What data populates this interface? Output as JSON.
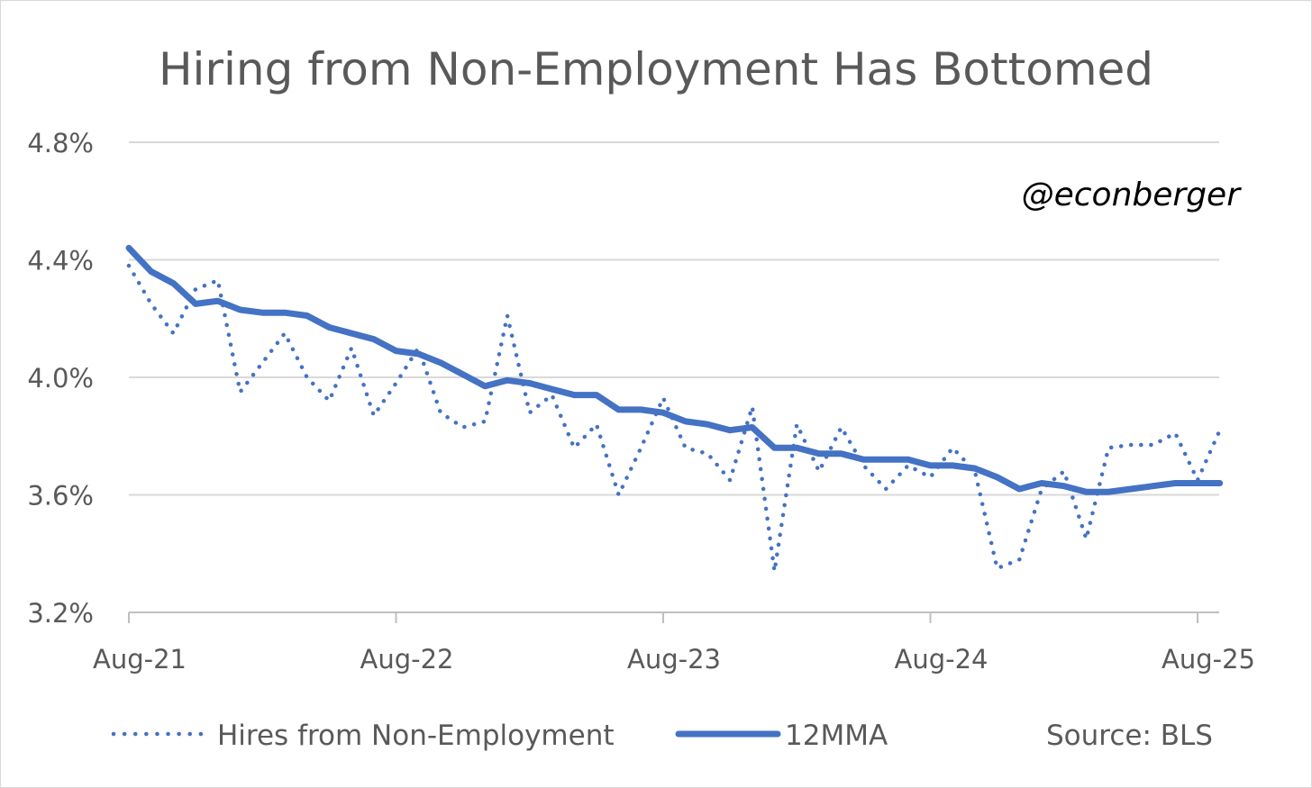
{
  "chart_data": {
    "type": "line",
    "title": "Hiring from Non-Employment Has Bottomed",
    "annotation": "@econberger",
    "source": "Source: BLS",
    "xlabel": "",
    "ylabel": "",
    "ylim": [
      3.2,
      4.8
    ],
    "yticks": [
      "3.2%",
      "3.6%",
      "4.0%",
      "4.4%",
      "4.8%"
    ],
    "ytick_values": [
      3.2,
      3.6,
      4.0,
      4.4,
      4.8
    ],
    "xticks": [
      "Aug-21",
      "Aug-22",
      "Aug-23",
      "Aug-24",
      "Aug-25"
    ],
    "xtick_index": [
      0,
      12,
      24,
      36,
      48
    ],
    "grid": true,
    "legend_position": "bottom",
    "series": [
      {
        "name": "Hires from Non-Employment",
        "style": "dotted",
        "color": "#4472C4",
        "values": [
          4.38,
          4.25,
          4.15,
          4.3,
          4.33,
          3.95,
          4.05,
          4.15,
          4.0,
          3.92,
          4.1,
          3.87,
          3.98,
          4.1,
          3.88,
          3.83,
          3.85,
          4.21,
          3.88,
          3.94,
          3.76,
          3.84,
          3.6,
          3.76,
          3.93,
          3.76,
          3.74,
          3.65,
          3.9,
          3.34,
          3.84,
          3.68,
          3.83,
          3.7,
          3.62,
          3.7,
          3.66,
          3.76,
          3.68,
          3.35,
          3.38,
          3.62,
          3.68,
          3.45,
          3.76,
          3.77,
          3.77,
          3.81,
          3.65,
          3.82
        ]
      },
      {
        "name": "12MMA",
        "style": "solid",
        "color": "#4472C4",
        "values": [
          4.44,
          4.36,
          4.32,
          4.25,
          4.26,
          4.23,
          4.22,
          4.22,
          4.21,
          4.17,
          4.15,
          4.13,
          4.09,
          4.08,
          4.05,
          4.01,
          3.97,
          3.99,
          3.98,
          3.96,
          3.94,
          3.94,
          3.89,
          3.89,
          3.88,
          3.85,
          3.84,
          3.82,
          3.83,
          3.76,
          3.76,
          3.74,
          3.74,
          3.72,
          3.72,
          3.72,
          3.7,
          3.7,
          3.69,
          3.66,
          3.62,
          3.64,
          3.63,
          3.61,
          3.61,
          3.62,
          3.63,
          3.64,
          3.64,
          3.64
        ]
      }
    ]
  }
}
